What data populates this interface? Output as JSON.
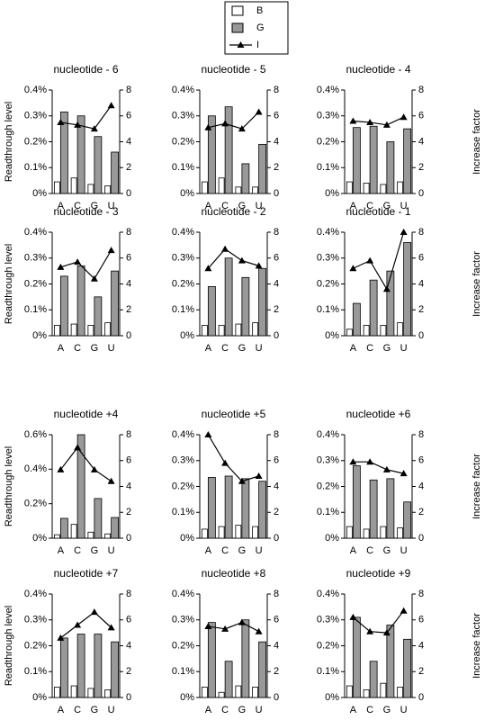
{
  "legend": [
    {
      "name": "B",
      "color": "#ffffff"
    },
    {
      "name": "G",
      "color": "#999999"
    },
    {
      "name": "I",
      "color": "#000000"
    }
  ],
  "chart_data": [
    {
      "type": "bar",
      "title": "nucleotide - 6",
      "ylabel": "Readthrough level",
      "categories": [
        "A",
        "C",
        "G",
        "U"
      ],
      "series": [
        {
          "values": [
            0.045,
            0.06,
            0.035,
            0.03
          ]
        },
        {
          "values": [
            0.315,
            0.3,
            0.22,
            0.16
          ]
        },
        {
          "values": [
            5.5,
            5.3,
            5.0,
            6.8
          ],
          "axis": "y2"
        }
      ],
      "ylim": [
        0,
        0.4
      ],
      "yticks": [
        {
          "value": 0,
          "label": "0%"
        },
        {
          "value": 0.1,
          "label": "0.1%"
        },
        {
          "value": 0.2,
          "label": "0.2%"
        },
        {
          "value": 0.3,
          "label": "0.3%"
        },
        {
          "value": 0.4,
          "label": "0.4%"
        }
      ],
      "y2lim": [
        0,
        8
      ],
      "y2ticks": [
        0,
        2,
        4,
        6,
        8
      ]
    },
    {
      "type": "bar",
      "title": "nucleotide - 5",
      "categories": [
        "A",
        "C",
        "G",
        "U"
      ],
      "series": [
        {
          "values": [
            0.045,
            0.06,
            0.025,
            0.025
          ]
        },
        {
          "values": [
            0.3,
            0.335,
            0.115,
            0.19
          ]
        },
        {
          "values": [
            5.1,
            5.4,
            5.0,
            6.3
          ],
          "axis": "y2"
        }
      ],
      "ylim": [
        0,
        0.4
      ],
      "yticks": [
        {
          "value": 0,
          "label": "0%"
        },
        {
          "value": 0.1,
          "label": "0.1%"
        },
        {
          "value": 0.2,
          "label": "0.2%"
        },
        {
          "value": 0.3,
          "label": "0.3%"
        },
        {
          "value": 0.4,
          "label": "0.4%"
        }
      ],
      "y2lim": [
        0,
        8
      ],
      "y2ticks": [
        0,
        2,
        4,
        6,
        8
      ]
    },
    {
      "type": "bar",
      "title": "nucleotide - 4",
      "y2label": "Increase factor",
      "categories": [
        "A",
        "C",
        "G",
        "U"
      ],
      "series": [
        {
          "values": [
            0.045,
            0.04,
            0.035,
            0.045
          ]
        },
        {
          "values": [
            0.255,
            0.26,
            0.2,
            0.25
          ]
        },
        {
          "values": [
            5.6,
            5.5,
            5.3,
            5.9
          ],
          "axis": "y2"
        }
      ],
      "ylim": [
        0,
        0.4
      ],
      "yticks": [
        {
          "value": 0,
          "label": "0%"
        },
        {
          "value": 0.1,
          "label": "0.1%"
        },
        {
          "value": 0.2,
          "label": "0.2%"
        },
        {
          "value": 0.3,
          "label": "0.3%"
        },
        {
          "value": 0.4,
          "label": "0.4%"
        }
      ],
      "y2lim": [
        0,
        8
      ],
      "y2ticks": [
        0,
        2,
        4,
        6,
        8
      ]
    },
    {
      "type": "bar",
      "title": "nucleotide - 3",
      "ylabel": "Readthrough level",
      "categories": [
        "A",
        "C",
        "G",
        "U"
      ],
      "series": [
        {
          "values": [
            0.04,
            0.045,
            0.04,
            0.05
          ]
        },
        {
          "values": [
            0.23,
            0.27,
            0.15,
            0.25
          ]
        },
        {
          "values": [
            5.3,
            5.7,
            4.4,
            6.6
          ],
          "axis": "y2"
        }
      ],
      "ylim": [
        0,
        0.4
      ],
      "yticks": [
        {
          "value": 0,
          "label": "0%"
        },
        {
          "value": 0.1,
          "label": "0.1%"
        },
        {
          "value": 0.2,
          "label": "0.2%"
        },
        {
          "value": 0.3,
          "label": "0.3%"
        },
        {
          "value": 0.4,
          "label": "0.4%"
        }
      ],
      "y2lim": [
        0,
        8
      ],
      "y2ticks": [
        0,
        2,
        4,
        6,
        8
      ]
    },
    {
      "type": "bar",
      "title": "nucleotide - 2",
      "categories": [
        "A",
        "C",
        "G",
        "U"
      ],
      "series": [
        {
          "values": [
            0.04,
            0.04,
            0.045,
            0.05
          ]
        },
        {
          "values": [
            0.19,
            0.3,
            0.225,
            0.26
          ]
        },
        {
          "values": [
            5.2,
            6.7,
            5.8,
            5.4
          ],
          "axis": "y2"
        }
      ],
      "ylim": [
        0,
        0.4
      ],
      "yticks": [
        {
          "value": 0,
          "label": "0%"
        },
        {
          "value": 0.1,
          "label": "0.1%"
        },
        {
          "value": 0.2,
          "label": "0.2%"
        },
        {
          "value": 0.3,
          "label": "0.3%"
        },
        {
          "value": 0.4,
          "label": "0.4%"
        }
      ],
      "y2lim": [
        0,
        8
      ],
      "y2ticks": [
        0,
        2,
        4,
        6,
        8
      ]
    },
    {
      "type": "bar",
      "title": "nucleotide - 1",
      "y2label": "Increase factor",
      "categories": [
        "A",
        "C",
        "G",
        "U"
      ],
      "series": [
        {
          "values": [
            0.025,
            0.04,
            0.04,
            0.05
          ]
        },
        {
          "values": [
            0.125,
            0.215,
            0.25,
            0.36
          ]
        },
        {
          "values": [
            5.2,
            5.8,
            3.6,
            8.0
          ],
          "axis": "y2"
        }
      ],
      "ylim": [
        0,
        0.4
      ],
      "yticks": [
        {
          "value": 0,
          "label": "0%"
        },
        {
          "value": 0.1,
          "label": "0.1%"
        },
        {
          "value": 0.2,
          "label": "0.2%"
        },
        {
          "value": 0.3,
          "label": "0.3%"
        },
        {
          "value": 0.4,
          "label": "0.4%"
        }
      ],
      "y2lim": [
        0,
        8
      ],
      "y2ticks": [
        0,
        2,
        4,
        6,
        8
      ]
    },
    {
      "type": "bar",
      "title": "nucleotide +4",
      "ylabel": "Readthrough level",
      "categories": [
        "A",
        "C",
        "G",
        "U"
      ],
      "series": [
        {
          "values": [
            0.02,
            0.08,
            0.035,
            0.025
          ]
        },
        {
          "values": [
            0.115,
            0.6,
            0.23,
            0.12
          ]
        },
        {
          "values": [
            5.3,
            7.0,
            5.3,
            4.4
          ],
          "axis": "y2"
        }
      ],
      "ylim": [
        0,
        0.6
      ],
      "yticks": [
        {
          "value": 0,
          "label": "0%"
        },
        {
          "value": 0.2,
          "label": "0.2%"
        },
        {
          "value": 0.4,
          "label": "0.4%"
        },
        {
          "value": 0.6,
          "label": "0.6%"
        }
      ],
      "y2lim": [
        0,
        8
      ],
      "y2ticks": [
        0,
        2,
        4,
        6,
        8
      ]
    },
    {
      "type": "bar",
      "title": "nucleotide +5",
      "categories": [
        "A",
        "C",
        "G",
        "U"
      ],
      "series": [
        {
          "values": [
            0.035,
            0.045,
            0.05,
            0.045
          ]
        },
        {
          "values": [
            0.235,
            0.24,
            0.23,
            0.22
          ]
        },
        {
          "values": [
            8.0,
            5.8,
            4.4,
            4.8
          ],
          "axis": "y2"
        }
      ],
      "ylim": [
        0,
        0.4
      ],
      "yticks": [
        {
          "value": 0,
          "label": "0%"
        },
        {
          "value": 0.1,
          "label": "0.1%"
        },
        {
          "value": 0.2,
          "label": "0.2%"
        },
        {
          "value": 0.3,
          "label": "0.3%"
        },
        {
          "value": 0.4,
          "label": "0.4%"
        }
      ],
      "y2lim": [
        0,
        8
      ],
      "y2ticks": [
        0,
        2,
        4,
        6,
        8
      ]
    },
    {
      "type": "bar",
      "title": "nucleotide +6",
      "y2label": "Increase factor",
      "categories": [
        "A",
        "C",
        "G",
        "U"
      ],
      "series": [
        {
          "values": [
            0.045,
            0.035,
            0.045,
            0.04
          ]
        },
        {
          "values": [
            0.28,
            0.225,
            0.23,
            0.14
          ]
        },
        {
          "values": [
            5.9,
            5.9,
            5.3,
            5.0
          ],
          "axis": "y2"
        }
      ],
      "ylim": [
        0,
        0.4
      ],
      "yticks": [
        {
          "value": 0,
          "label": "0%"
        },
        {
          "value": 0.1,
          "label": "0.1%"
        },
        {
          "value": 0.2,
          "label": "0.2%"
        },
        {
          "value": 0.3,
          "label": "0.3%"
        },
        {
          "value": 0.4,
          "label": "0.4%"
        }
      ],
      "y2lim": [
        0,
        8
      ],
      "y2ticks": [
        0,
        2,
        4,
        6,
        8
      ]
    },
    {
      "type": "bar",
      "title": "nucleotide +7",
      "ylabel": "Readthrough level",
      "categories": [
        "A",
        "C",
        "G",
        "U"
      ],
      "series": [
        {
          "values": [
            0.04,
            0.045,
            0.035,
            0.03
          ]
        },
        {
          "values": [
            0.23,
            0.245,
            0.245,
            0.215
          ]
        },
        {
          "values": [
            4.6,
            5.6,
            6.6,
            5.4
          ],
          "axis": "y2"
        }
      ],
      "ylim": [
        0,
        0.4
      ],
      "yticks": [
        {
          "value": 0,
          "label": "0%"
        },
        {
          "value": 0.1,
          "label": "0.1%"
        },
        {
          "value": 0.2,
          "label": "0.2%"
        },
        {
          "value": 0.3,
          "label": "0.3%"
        },
        {
          "value": 0.4,
          "label": "0.4%"
        }
      ],
      "y2lim": [
        0,
        8
      ],
      "y2ticks": [
        0,
        2,
        4,
        6,
        8
      ]
    },
    {
      "type": "bar",
      "title": "nucleotide +8",
      "categories": [
        "A",
        "C",
        "G",
        "U"
      ],
      "series": [
        {
          "values": [
            0.04,
            0.02,
            0.045,
            0.04
          ]
        },
        {
          "values": [
            0.29,
            0.14,
            0.3,
            0.215
          ]
        },
        {
          "values": [
            5.5,
            5.3,
            5.8,
            5.1
          ],
          "axis": "y2"
        }
      ],
      "ylim": [
        0,
        0.4
      ],
      "yticks": [
        {
          "value": 0,
          "label": "0%"
        },
        {
          "value": 0.1,
          "label": "0.1%"
        },
        {
          "value": 0.2,
          "label": "0.2%"
        },
        {
          "value": 0.3,
          "label": "0.3%"
        },
        {
          "value": 0.4,
          "label": "0.4%"
        }
      ],
      "y2lim": [
        0,
        8
      ],
      "y2ticks": [
        0,
        2,
        4,
        6,
        8
      ]
    },
    {
      "type": "bar",
      "title": "nucleotide +9",
      "y2label": "Increase factor",
      "categories": [
        "A",
        "C",
        "G",
        "U"
      ],
      "series": [
        {
          "values": [
            0.045,
            0.03,
            0.055,
            0.04
          ]
        },
        {
          "values": [
            0.31,
            0.14,
            0.28,
            0.225
          ]
        },
        {
          "values": [
            6.2,
            5.1,
            5.0,
            6.7
          ],
          "axis": "y2"
        }
      ],
      "ylim": [
        0,
        0.4
      ],
      "yticks": [
        {
          "value": 0,
          "label": "0%"
        },
        {
          "value": 0.1,
          "label": "0.1%"
        },
        {
          "value": 0.2,
          "label": "0.2%"
        },
        {
          "value": 0.3,
          "label": "0.3%"
        },
        {
          "value": 0.4,
          "label": "0.4%"
        }
      ],
      "y2lim": [
        0,
        8
      ],
      "y2ticks": [
        0,
        2,
        4,
        6,
        8
      ]
    }
  ]
}
